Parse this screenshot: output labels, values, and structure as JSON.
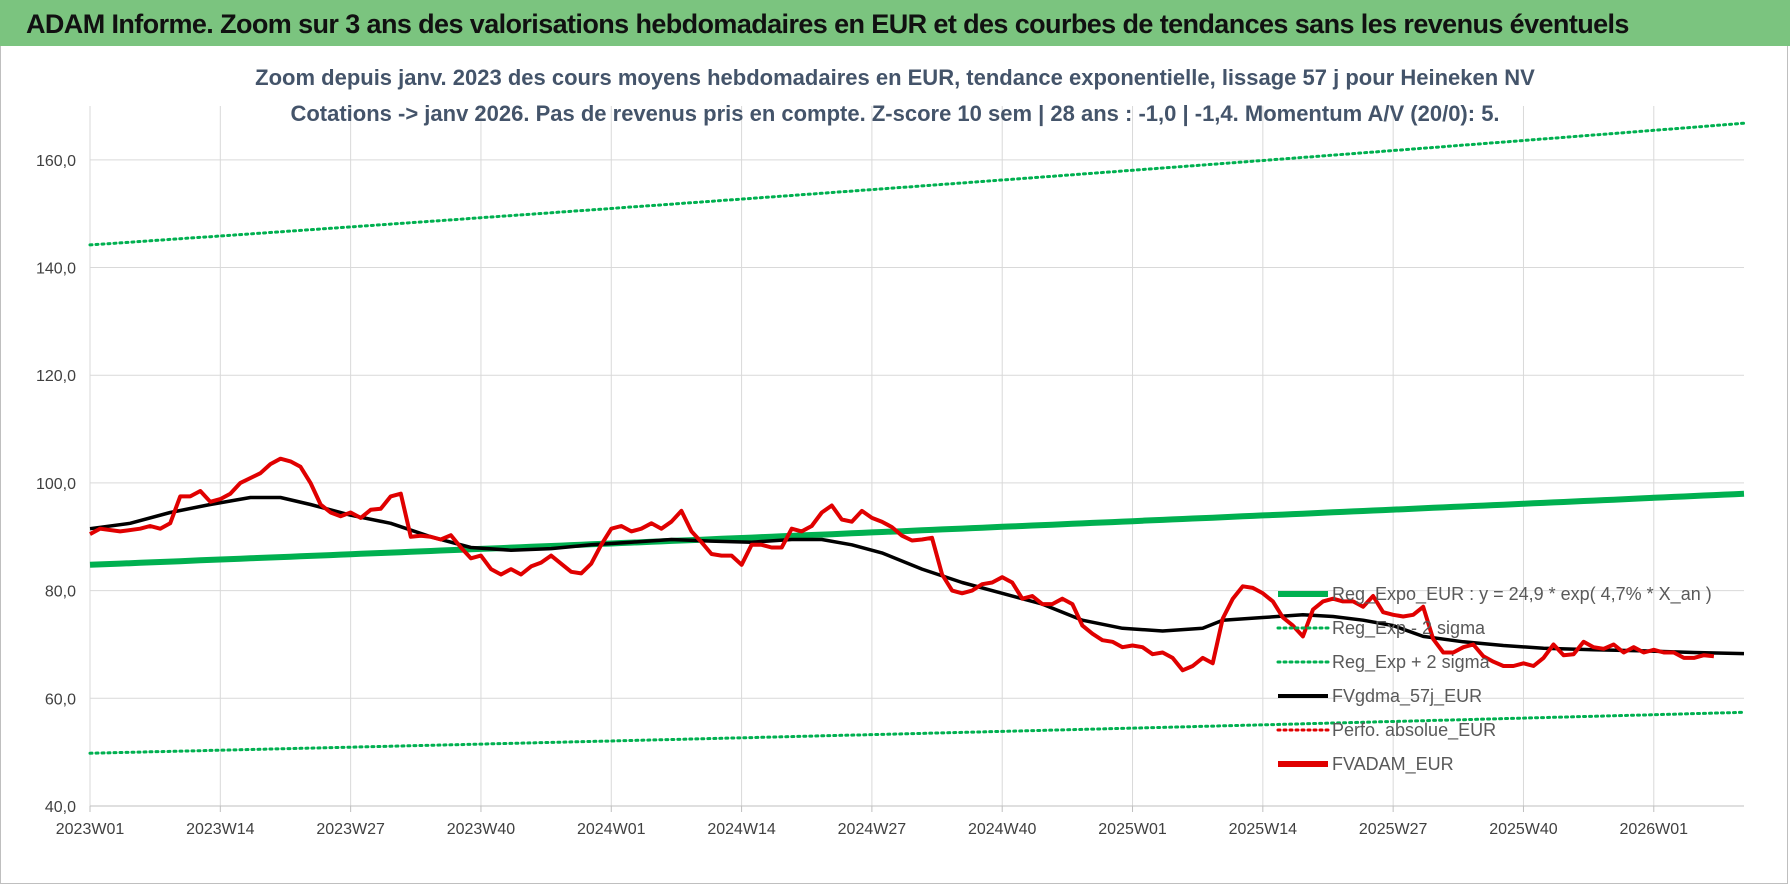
{
  "banner": {
    "title": "ADAM Informe. Zoom sur 3 ans des valorisations hebdomadaires en EUR et des courbes de tendances sans les revenus éventuels"
  },
  "chart_data": {
    "type": "line",
    "title_line1": "Zoom depuis janv. 2023 des cours moyens hebdomadaires en EUR, tendance exponentielle, lissage 57 j pour Heineken NV",
    "title_line2": "Cotations -> janv 2026. Pas de revenus pris en compte. Z-score 10 sem | 28 ans : -1,0 | -1,4. Momentum A/V (20/0): 5.",
    "ylim": [
      40,
      170
    ],
    "yticks": [
      40,
      60,
      80,
      100,
      120,
      140,
      160
    ],
    "ytick_labels": [
      "40,0",
      "60,0",
      "80,0",
      "100,0",
      "120,0",
      "140,0",
      "160,0"
    ],
    "x_range": [
      0,
      165
    ],
    "xtick_positions": [
      0,
      13,
      26,
      39,
      52,
      65,
      78,
      91,
      104,
      117,
      130,
      143,
      156
    ],
    "xtick_labels": [
      "2023W01",
      "2023W14",
      "2023W27",
      "2023W40",
      "2024W01",
      "2024W14",
      "2024W27",
      "2024W40",
      "2025W01",
      "2025W14",
      "2025W27",
      "2025W40",
      "2026W01"
    ],
    "legend": [
      {
        "name": "Reg_Expo_EUR : y = 24,9 * exp( 4,7% *  X_an )",
        "color": "#00b050",
        "style": "solid-thick"
      },
      {
        "name": "Reg_Exp - 2 sigma",
        "color": "#00b050",
        "style": "dotted"
      },
      {
        "name": "Reg_Exp + 2 sigma",
        "color": "#00b050",
        "style": "dotted"
      },
      {
        "name": "FVgdma_57j_EUR",
        "color": "#000000",
        "style": "solid"
      },
      {
        "name": "Perfo. absolue_EUR",
        "color": "#e00000",
        "style": "dotted"
      },
      {
        "name": "FVADAM_EUR",
        "color": "#e00000",
        "style": "solid-thick"
      }
    ],
    "series": [
      {
        "name": "Reg_Expo_EUR",
        "color": "#00b050",
        "start": 84.8,
        "end": 98.0
      },
      {
        "name": "Reg_Exp - 2 sigma",
        "color": "#00b050",
        "start": 49.8,
        "end": 57.4
      },
      {
        "name": "Reg_Exp + 2 sigma",
        "color": "#00b050",
        "start": 144.2,
        "end": 166.8
      },
      {
        "name": "FVgdma_57j_EUR",
        "color": "#000000",
        "points": [
          [
            0,
            91.5
          ],
          [
            4,
            92.5
          ],
          [
            8,
            94.5
          ],
          [
            12,
            96
          ],
          [
            16,
            97.3
          ],
          [
            19,
            97.3
          ],
          [
            22,
            96
          ],
          [
            26,
            94
          ],
          [
            30,
            92.5
          ],
          [
            34,
            90
          ],
          [
            38,
            88
          ],
          [
            42,
            87.5
          ],
          [
            46,
            87.8
          ],
          [
            50,
            88.5
          ],
          [
            54,
            89
          ],
          [
            58,
            89.5
          ],
          [
            62,
            89.2
          ],
          [
            66,
            89
          ],
          [
            70,
            89.5
          ],
          [
            73,
            89.5
          ],
          [
            76,
            88.5
          ],
          [
            79,
            87
          ],
          [
            83,
            84
          ],
          [
            87,
            81.5
          ],
          [
            91,
            79.5
          ],
          [
            95,
            77.5
          ],
          [
            99,
            74.5
          ],
          [
            103,
            73
          ],
          [
            107,
            72.5
          ],
          [
            111,
            73
          ],
          [
            113,
            74.5
          ],
          [
            117,
            75
          ],
          [
            121,
            75.5
          ],
          [
            124,
            75.2
          ],
          [
            127,
            74.5
          ],
          [
            130,
            73.5
          ],
          [
            133,
            71.5
          ],
          [
            137,
            70.5
          ],
          [
            141,
            69.8
          ],
          [
            145,
            69.3
          ],
          [
            150,
            69
          ],
          [
            155,
            68.8
          ],
          [
            160,
            68.5
          ],
          [
            165,
            68.3
          ]
        ]
      },
      {
        "name": "FVADAM_EUR",
        "color": "#e00000",
        "points": [
          [
            0,
            90.5
          ],
          [
            1,
            91.5
          ],
          [
            3,
            91
          ],
          [
            5,
            91.5
          ],
          [
            6,
            92
          ],
          [
            7,
            91.5
          ],
          [
            8,
            92.5
          ],
          [
            9,
            97.5
          ],
          [
            10,
            97.5
          ],
          [
            11,
            98.5
          ],
          [
            12,
            96.5
          ],
          [
            13,
            97
          ],
          [
            14,
            98
          ],
          [
            15,
            100
          ],
          [
            17,
            101.8
          ],
          [
            18,
            103.5
          ],
          [
            19,
            104.5
          ],
          [
            20,
            104
          ],
          [
            21,
            103
          ],
          [
            22,
            100
          ],
          [
            23,
            96
          ],
          [
            24,
            94.5
          ],
          [
            25,
            93.8
          ],
          [
            26,
            94.5
          ],
          [
            27,
            93.5
          ],
          [
            28,
            95
          ],
          [
            29,
            95.2
          ],
          [
            30,
            97.5
          ],
          [
            31,
            98
          ],
          [
            32,
            90
          ],
          [
            33,
            90.2
          ],
          [
            34,
            90
          ],
          [
            35,
            89.5
          ],
          [
            36,
            90.3
          ],
          [
            37,
            88
          ],
          [
            38,
            86
          ],
          [
            39,
            86.5
          ],
          [
            40,
            84
          ],
          [
            41,
            83
          ],
          [
            42,
            84
          ],
          [
            43,
            83
          ],
          [
            44,
            84.5
          ],
          [
            45,
            85.2
          ],
          [
            46,
            86.5
          ],
          [
            47,
            85
          ],
          [
            48,
            83.5
          ],
          [
            49,
            83.2
          ],
          [
            50,
            85
          ],
          [
            51,
            88.5
          ],
          [
            52,
            91.5
          ],
          [
            53,
            92
          ],
          [
            54,
            91
          ],
          [
            55,
            91.5
          ],
          [
            56,
            92.5
          ],
          [
            57,
            91.5
          ],
          [
            58,
            92.8
          ],
          [
            59,
            94.8
          ],
          [
            60,
            91
          ],
          [
            61,
            89
          ],
          [
            62,
            86.8
          ],
          [
            63,
            86.5
          ],
          [
            64,
            86.5
          ],
          [
            65,
            84.8
          ],
          [
            66,
            88.5
          ],
          [
            67,
            88.5
          ],
          [
            68,
            88
          ],
          [
            69,
            88
          ],
          [
            70,
            91.5
          ],
          [
            71,
            91
          ],
          [
            72,
            92
          ],
          [
            73,
            94.5
          ],
          [
            74,
            95.8
          ],
          [
            75,
            93.2
          ],
          [
            76,
            92.8
          ],
          [
            77,
            94.8
          ],
          [
            78,
            93.5
          ],
          [
            79,
            92.8
          ],
          [
            80,
            91.8
          ],
          [
            81,
            90.2
          ],
          [
            82,
            89.3
          ],
          [
            83,
            89.5
          ],
          [
            84,
            89.8
          ],
          [
            85,
            83
          ],
          [
            86,
            80
          ],
          [
            87,
            79.5
          ],
          [
            88,
            80
          ],
          [
            89,
            81.2
          ],
          [
            90,
            81.5
          ],
          [
            91,
            82.5
          ],
          [
            92,
            81.5
          ],
          [
            93,
            78.5
          ],
          [
            94,
            79
          ],
          [
            95,
            77.5
          ],
          [
            96,
            77.5
          ],
          [
            97,
            78.5
          ],
          [
            98,
            77.5
          ],
          [
            99,
            73.5
          ],
          [
            100,
            72
          ],
          [
            101,
            70.8
          ],
          [
            102,
            70.5
          ],
          [
            103,
            69.5
          ],
          [
            104,
            69.8
          ],
          [
            105,
            69.5
          ],
          [
            106,
            68.2
          ],
          [
            107,
            68.5
          ],
          [
            108,
            67.5
          ],
          [
            109,
            65.2
          ],
          [
            110,
            66
          ],
          [
            111,
            67.5
          ],
          [
            112,
            66.5
          ],
          [
            113,
            74.8
          ],
          [
            114,
            78.5
          ],
          [
            115,
            80.8
          ],
          [
            116,
            80.5
          ],
          [
            117,
            79.5
          ],
          [
            118,
            78
          ],
          [
            119,
            75
          ],
          [
            120,
            73.5
          ],
          [
            121,
            71.5
          ],
          [
            122,
            76.5
          ],
          [
            123,
            78
          ],
          [
            124,
            78.5
          ],
          [
            125,
            78
          ],
          [
            126,
            78
          ],
          [
            127,
            77
          ],
          [
            128,
            79
          ],
          [
            129,
            76
          ],
          [
            130,
            75.5
          ],
          [
            131,
            75.2
          ],
          [
            132,
            75.5
          ],
          [
            133,
            77
          ],
          [
            134,
            71
          ],
          [
            135,
            68.5
          ],
          [
            136,
            68.5
          ],
          [
            137,
            69.5
          ],
          [
            138,
            70
          ],
          [
            139,
            67.8
          ],
          [
            140,
            66.8
          ],
          [
            141,
            66
          ],
          [
            142,
            66
          ],
          [
            143,
            66.5
          ],
          [
            144,
            66
          ],
          [
            145,
            67.5
          ],
          [
            146,
            70
          ],
          [
            147,
            68
          ],
          [
            148,
            68.2
          ],
          [
            149,
            70.5
          ],
          [
            150,
            69.5
          ],
          [
            151,
            69.2
          ],
          [
            152,
            70
          ],
          [
            153,
            68.5
          ],
          [
            154,
            69.5
          ],
          [
            155,
            68.5
          ],
          [
            156,
            69
          ],
          [
            157,
            68.5
          ],
          [
            158,
            68.5
          ],
          [
            159,
            67.5
          ],
          [
            160,
            67.5
          ],
          [
            161,
            68
          ],
          [
            162,
            67.8
          ]
        ]
      }
    ]
  }
}
